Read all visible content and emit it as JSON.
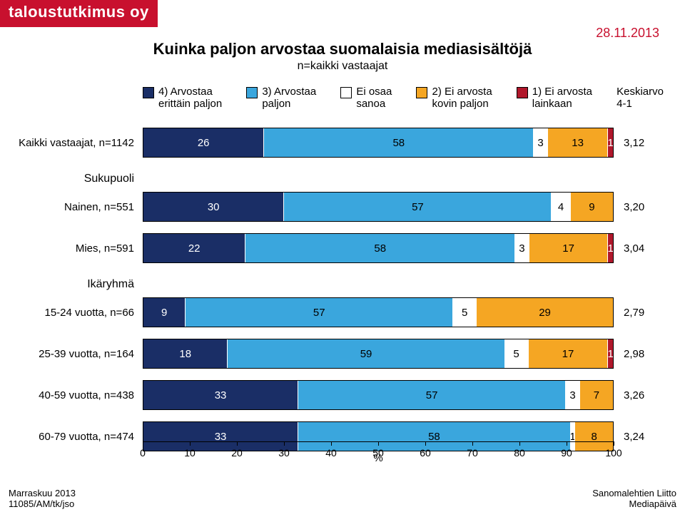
{
  "brand": "taloustutkimus oy",
  "date": "28.11.2013",
  "title": "Kuinka paljon arvostaa suomalaisia mediasisältöjä",
  "subtitle": "n=kaikki vastaajat",
  "legend": {
    "items": [
      {
        "label": "4) Arvostaa\nerittäin paljon",
        "color": "#1a2e66"
      },
      {
        "label": "3) Arvostaa\npaljon",
        "color": "#3aa6dd"
      },
      {
        "label": "Ei osaa\nsanoa",
        "color": "#ffffff"
      },
      {
        "label": "2) Ei arvosta\nkovin paljon",
        "color": "#f5a623"
      },
      {
        "label": "1) Ei arvosta\nlainkaan",
        "color": "#b0172b"
      }
    ],
    "avg_header": "Keskiarvo\n4-1"
  },
  "chart": {
    "type": "stacked-bar-horizontal",
    "xlim": [
      0,
      100
    ],
    "xtick_step": 10,
    "x_axis_label": "%",
    "background_color": "#ffffff",
    "segment_dark_text_on": [
      "#1a2e66",
      "#b0172b"
    ],
    "rows": [
      {
        "label": "Kaikki vastaajat, n=1142",
        "values": [
          26,
          58,
          3,
          13,
          1
        ],
        "avg": "3,12"
      },
      {
        "section": "Sukupuoli"
      },
      {
        "label": "Nainen, n=551",
        "values": [
          30,
          57,
          4,
          9,
          0
        ],
        "avg": "3,20"
      },
      {
        "label": "Mies, n=591",
        "values": [
          22,
          58,
          3,
          17,
          1
        ],
        "avg": "3,04"
      },
      {
        "section": "Ikäryhmä"
      },
      {
        "label": "15-24 vuotta, n=66",
        "values": [
          9,
          57,
          5,
          29,
          0
        ],
        "avg": "2,79"
      },
      {
        "label": "25-39 vuotta, n=164",
        "values": [
          18,
          59,
          5,
          17,
          1
        ],
        "avg": "2,98"
      },
      {
        "label": "40-59 vuotta, n=438",
        "values": [
          33,
          57,
          3,
          7,
          0
        ],
        "avg": "3,26"
      },
      {
        "label": "60-79 vuotta, n=474",
        "values": [
          33,
          58,
          1,
          8,
          0
        ],
        "avg": "3,24"
      }
    ]
  },
  "footer_left": {
    "line1": "Marraskuu 2013",
    "line2": "11085/AM/tk/jso"
  },
  "footer_right": {
    "line1": "Sanomalehtien Liitto",
    "line2": "Mediapäivä"
  }
}
